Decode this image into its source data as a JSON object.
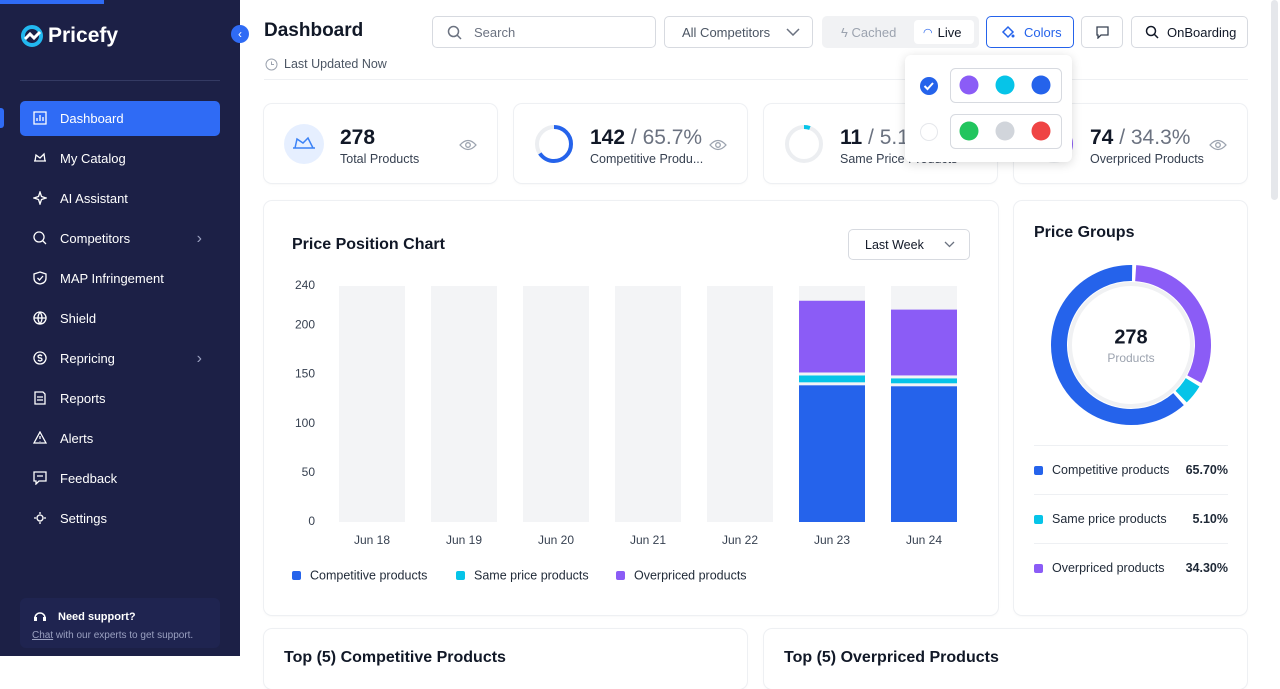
{
  "sidebar": {
    "brand": "Pricefy",
    "nav": [
      "Dashboard",
      "My Catalog",
      "AI Assistant",
      "Competitors",
      "MAP Infringement",
      "Shield",
      "Repricing",
      "Reports",
      "Alerts",
      "Feedback",
      "Settings"
    ],
    "support": {
      "title": "Need support?",
      "link": "Chat",
      "text": "with our experts to get support."
    }
  },
  "header": {
    "title": "Dashboard",
    "updated": "Last Updated Now",
    "search": "Search",
    "competitors": "All Competitors",
    "cached": "Cached",
    "live": "Live",
    "colors": "Colors",
    "onboarding": "OnBoarding"
  },
  "stats": [
    {
      "value": 278,
      "label": "Total Products"
    },
    {
      "value": 142,
      "percent": "65.7%",
      "label": "Competitive Produ..."
    },
    {
      "value": 11,
      "percent": "5.1%",
      "label": "Same Price Products"
    },
    {
      "value": 74,
      "percent": "34.3%",
      "label": "Overpriced Products"
    }
  ],
  "chart_data": [
    {
      "type": "bar",
      "stacked": true,
      "title": "Price Position Chart",
      "dropdown": "Last Week",
      "categories": [
        "Jun 18",
        "Jun 19",
        "Jun 20",
        "Jun 21",
        "Jun 22",
        "Jun 23",
        "Jun 24"
      ],
      "series": [
        {
          "name": "Competitive products",
          "color": "#2563eb",
          "values": [
            null,
            null,
            null,
            null,
            null,
            139,
            138
          ]
        },
        {
          "name": "Same price products",
          "color": "#06c4e8",
          "values": [
            null,
            null,
            null,
            null,
            null,
            10,
            8
          ]
        },
        {
          "name": "Overpriced products",
          "color": "#8b5cf6",
          "values": [
            null,
            null,
            null,
            null,
            null,
            76,
            70
          ]
        }
      ],
      "ylim": [
        0,
        240
      ],
      "yticks": [
        0,
        50,
        100,
        150,
        200,
        240
      ],
      "legend": "bottom"
    },
    {
      "type": "donut",
      "title": "Price Groups",
      "center_value": 278,
      "center_label": "Products",
      "categories": [
        "Competitive products",
        "Same price products",
        "Overpriced products"
      ],
      "values": [
        65.7,
        5.1,
        34.3
      ],
      "value_labels": [
        "65.70%",
        "5.10%",
        "34.30%"
      ],
      "colors": [
        "#2563eb",
        "#06c4e8",
        "#8b5cf6"
      ]
    }
  ],
  "sections": [
    "Top (5) Competitive Products",
    "Top (5) Overpriced Products"
  ]
}
